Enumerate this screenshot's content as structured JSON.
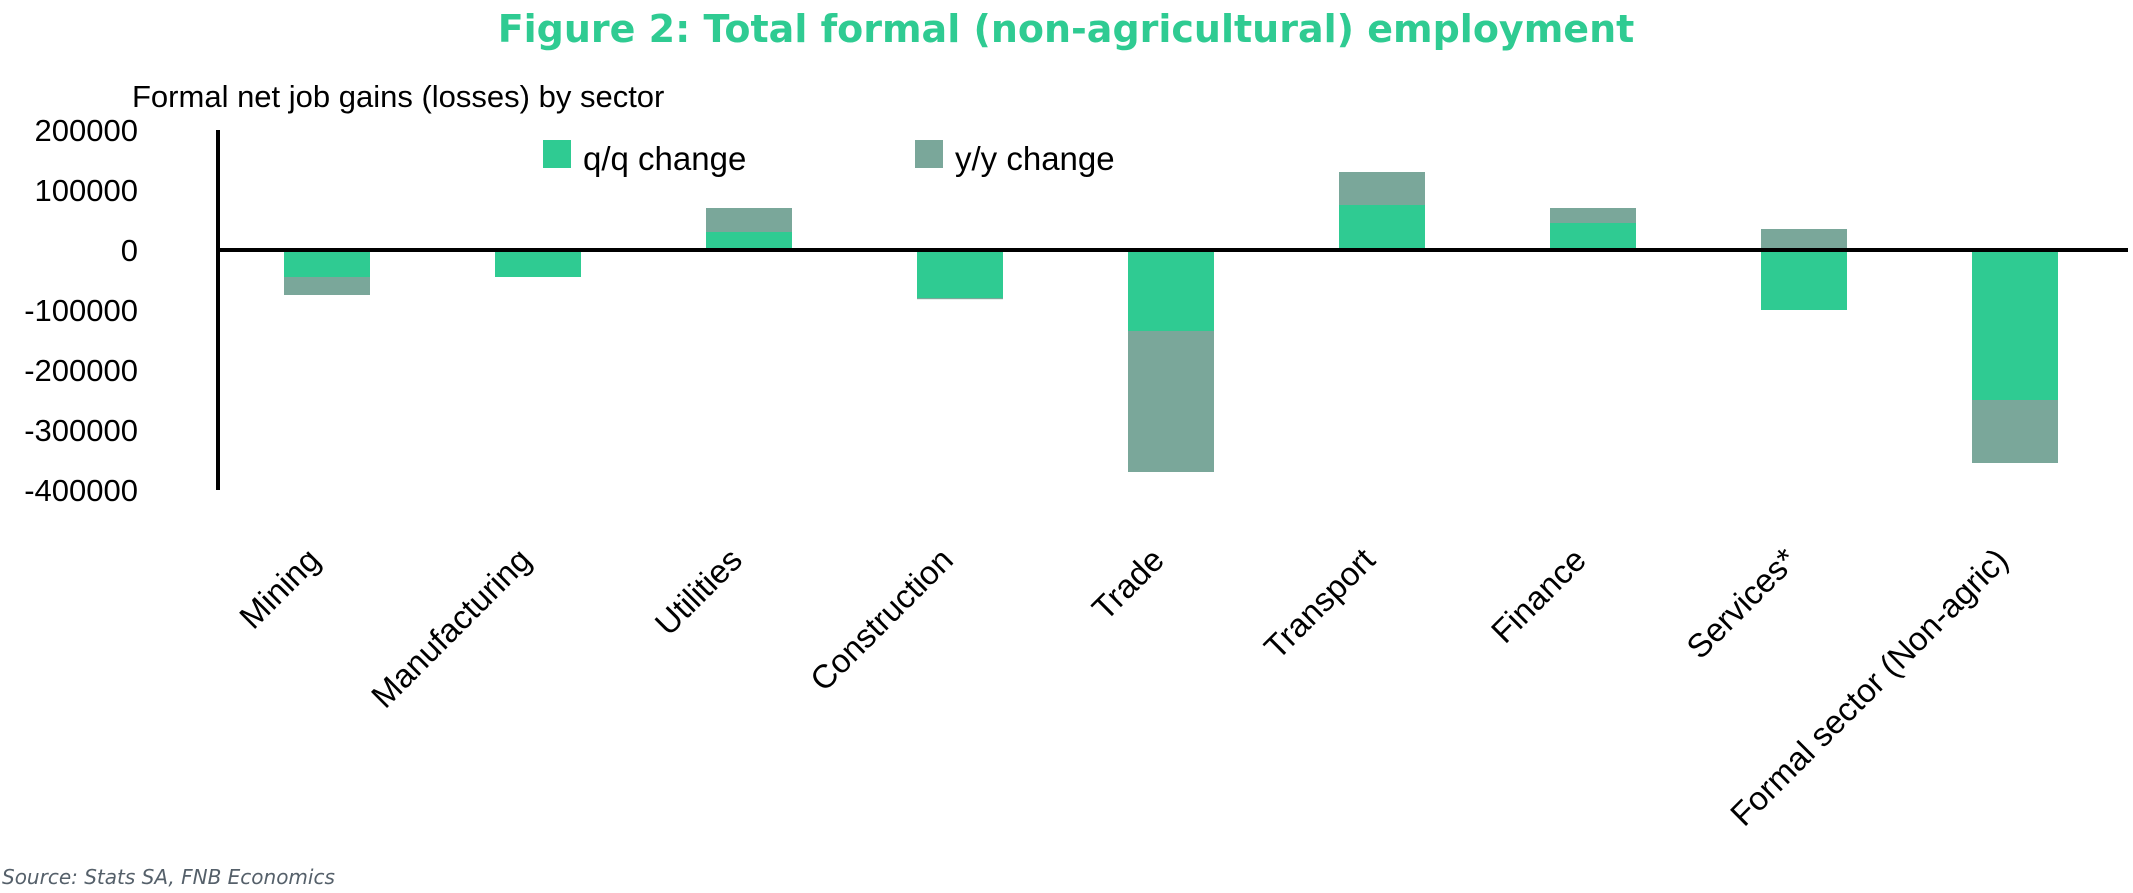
{
  "colors": {
    "title": "#2fcb92",
    "qq": "#2fcb92",
    "yy": "#7aa79a",
    "axis": "#000000",
    "source": "#55606a"
  },
  "chart_data": {
    "type": "bar",
    "stacked": true,
    "title": "Figure 2: Total formal (non-agricultural) employment",
    "subtitle": "Formal net job gains (losses) by sector",
    "source": "Source: Stats SA, FNB Economics",
    "ylim": [
      -400000,
      200000
    ],
    "yticks": [
      200000,
      100000,
      0,
      -100000,
      -200000,
      -300000,
      -400000
    ],
    "ytick_labels": [
      "200000",
      "100000",
      "0",
      "-100000",
      "-200000",
      "-300000",
      "-400000"
    ],
    "legend_position": "top",
    "categories": [
      "Mining",
      "Manufacturing",
      "Utilities",
      "Construction",
      "Trade",
      "Transport",
      "Finance",
      "Services*",
      "Formal sector (Non-agric)"
    ],
    "series": [
      {
        "name": "q/q change",
        "values": [
          -45000,
          -45000,
          30000,
          -80000,
          -135000,
          75000,
          45000,
          -100000,
          -250000
        ]
      },
      {
        "name": "y/y change",
        "values": [
          -30000,
          2000,
          40000,
          -2000,
          -235000,
          55000,
          25000,
          35000,
          -105000
        ]
      }
    ]
  }
}
